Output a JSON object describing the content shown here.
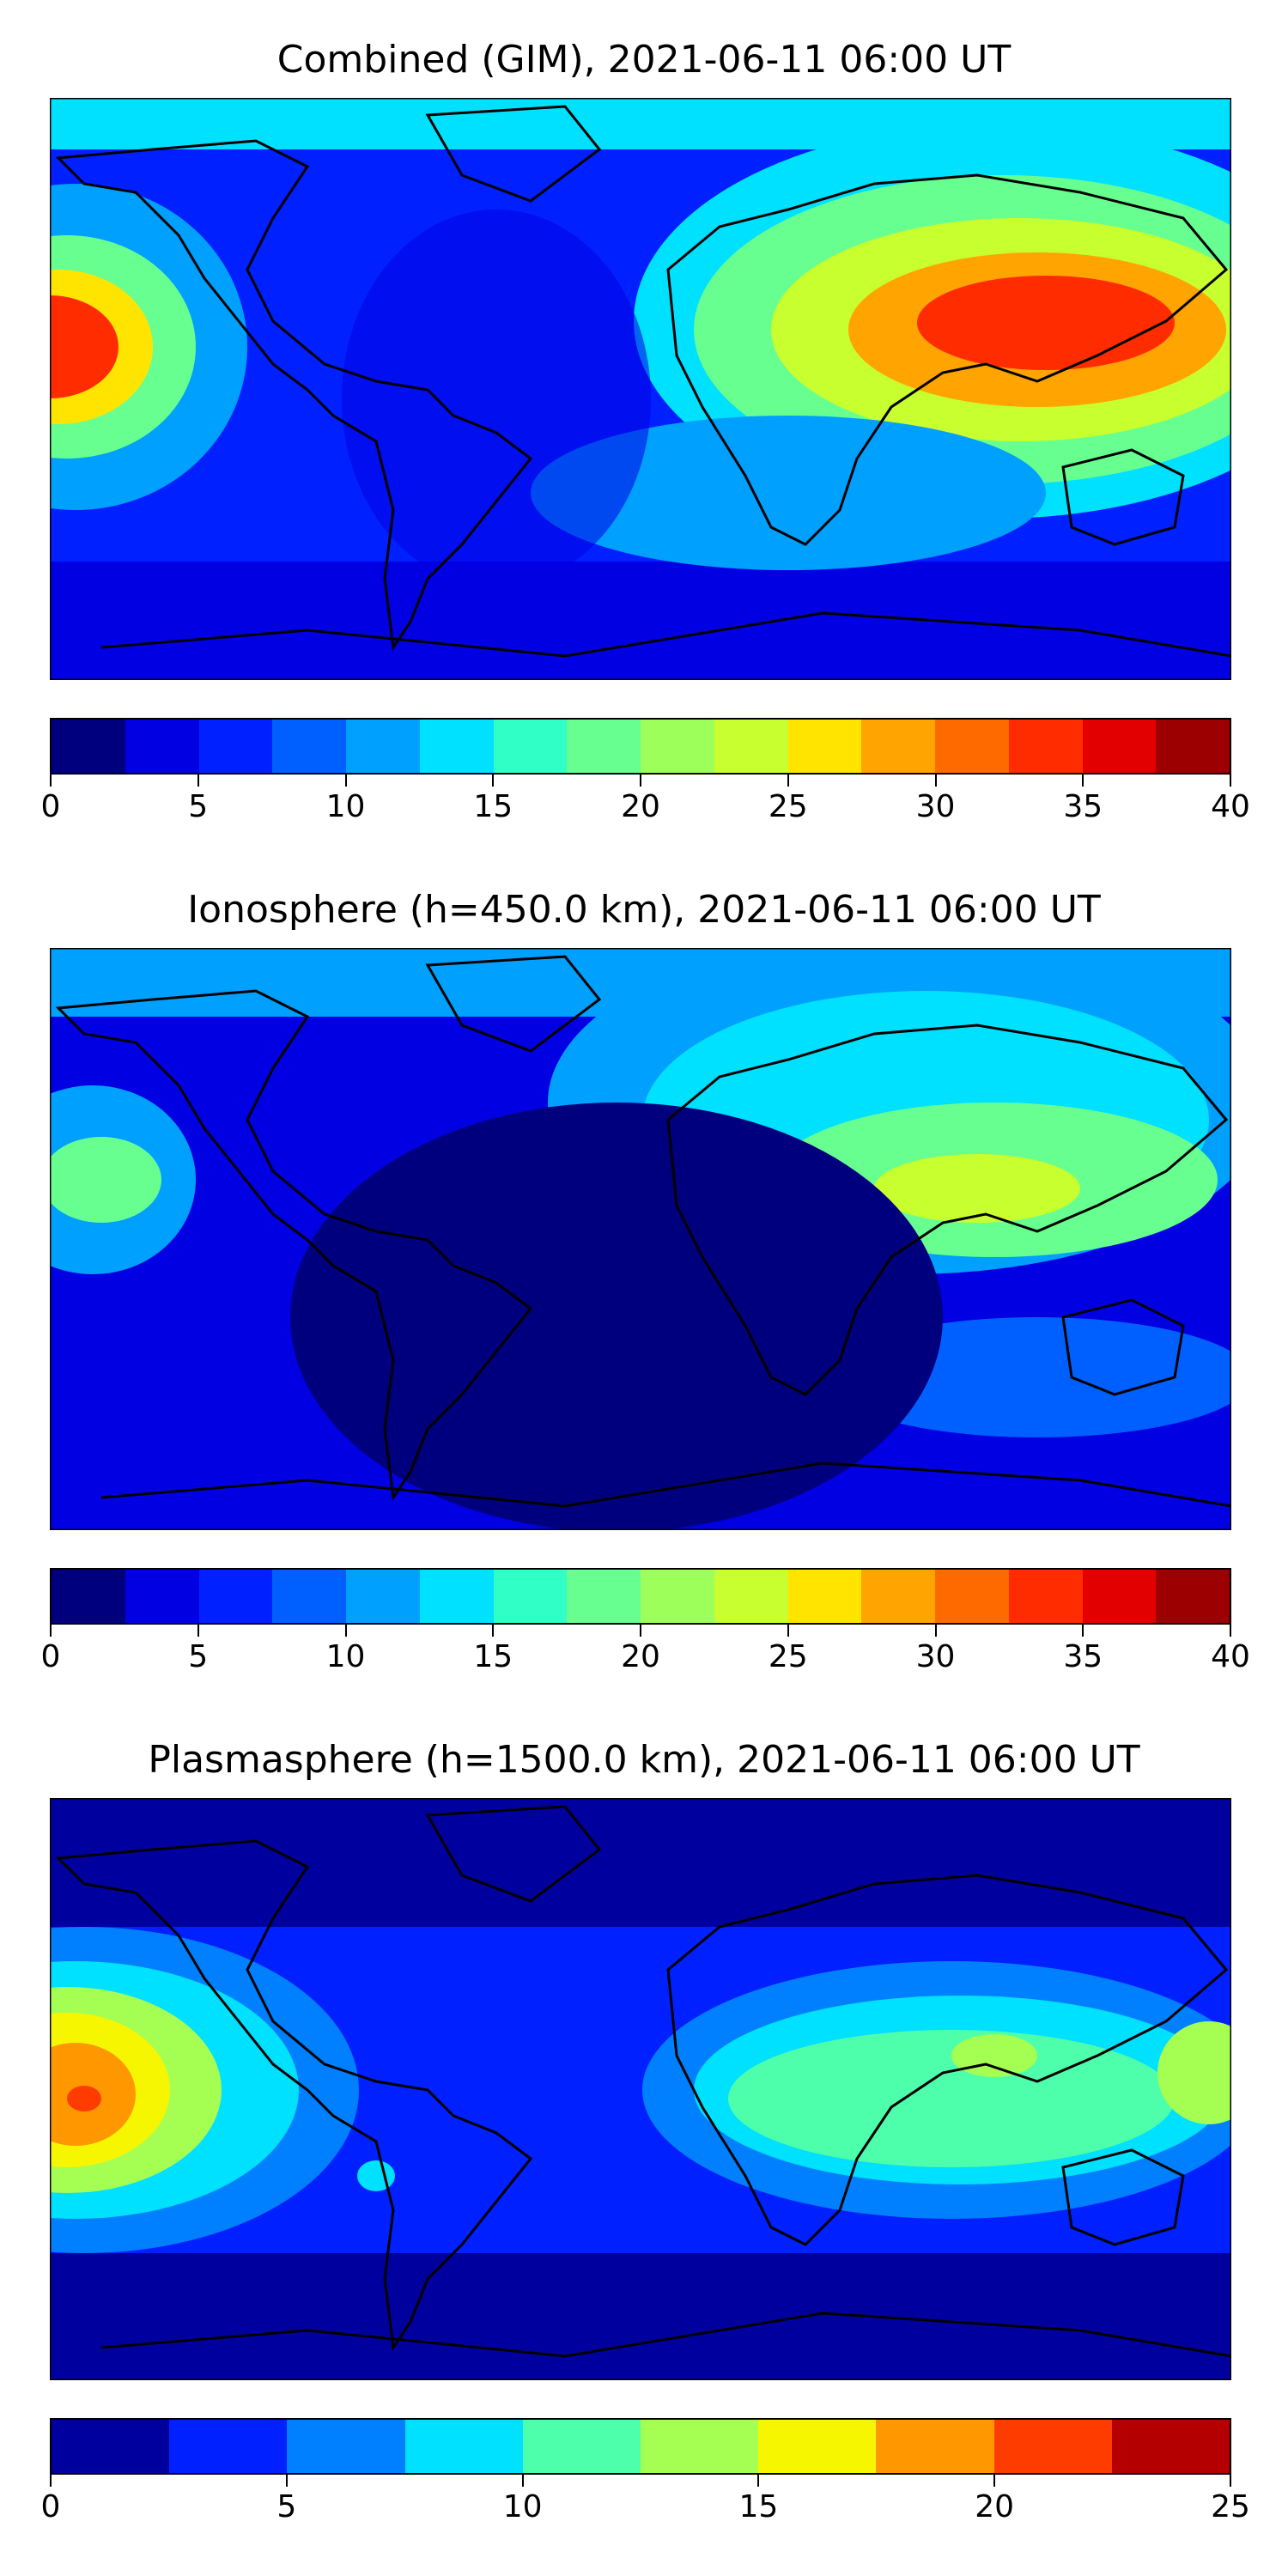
{
  "panels": [
    {
      "title": "Combined (GIM), 2021-06-11 06:00 UT",
      "colorbar": {
        "min": 0,
        "max": 40,
        "colors": [
          "#00007f",
          "#0000e3",
          "#0020ff",
          "#0060ff",
          "#00a0ff",
          "#00e0ff",
          "#30ffc6",
          "#66ff90",
          "#9cff5a",
          "#c8ff2e",
          "#ffe400",
          "#ffa400",
          "#ff6a00",
          "#ff2c00",
          "#e30000",
          "#9c0000"
        ],
        "ticks": [
          "0",
          "5",
          "10",
          "15",
          "20",
          "25",
          "30",
          "35",
          "40"
        ]
      }
    },
    {
      "title": "Ionosphere  (h=450.0 km), 2021-06-11 06:00 UT",
      "colorbar": {
        "min": 0,
        "max": 40,
        "colors": [
          "#00007f",
          "#0000e3",
          "#0020ff",
          "#0060ff",
          "#00a0ff",
          "#00e0ff",
          "#30ffc6",
          "#66ff90",
          "#9cff5a",
          "#c8ff2e",
          "#ffe400",
          "#ffa400",
          "#ff6a00",
          "#ff2c00",
          "#e30000",
          "#9c0000"
        ],
        "ticks": [
          "0",
          "5",
          "10",
          "15",
          "20",
          "25",
          "30",
          "35",
          "40"
        ]
      }
    },
    {
      "title": "Plasmasphere (h=1500.0 km), 2021-06-11 06:00 UT",
      "colorbar": {
        "min": 0,
        "max": 25,
        "colors": [
          "#00009f",
          "#0020ff",
          "#0080ff",
          "#00e0ff",
          "#4dffaa",
          "#a4ff52",
          "#f6f600",
          "#ff9800",
          "#ff3c00",
          "#b40000"
        ],
        "ticks": [
          "0",
          "5",
          "10",
          "15",
          "20",
          "25"
        ]
      }
    }
  ]
}
